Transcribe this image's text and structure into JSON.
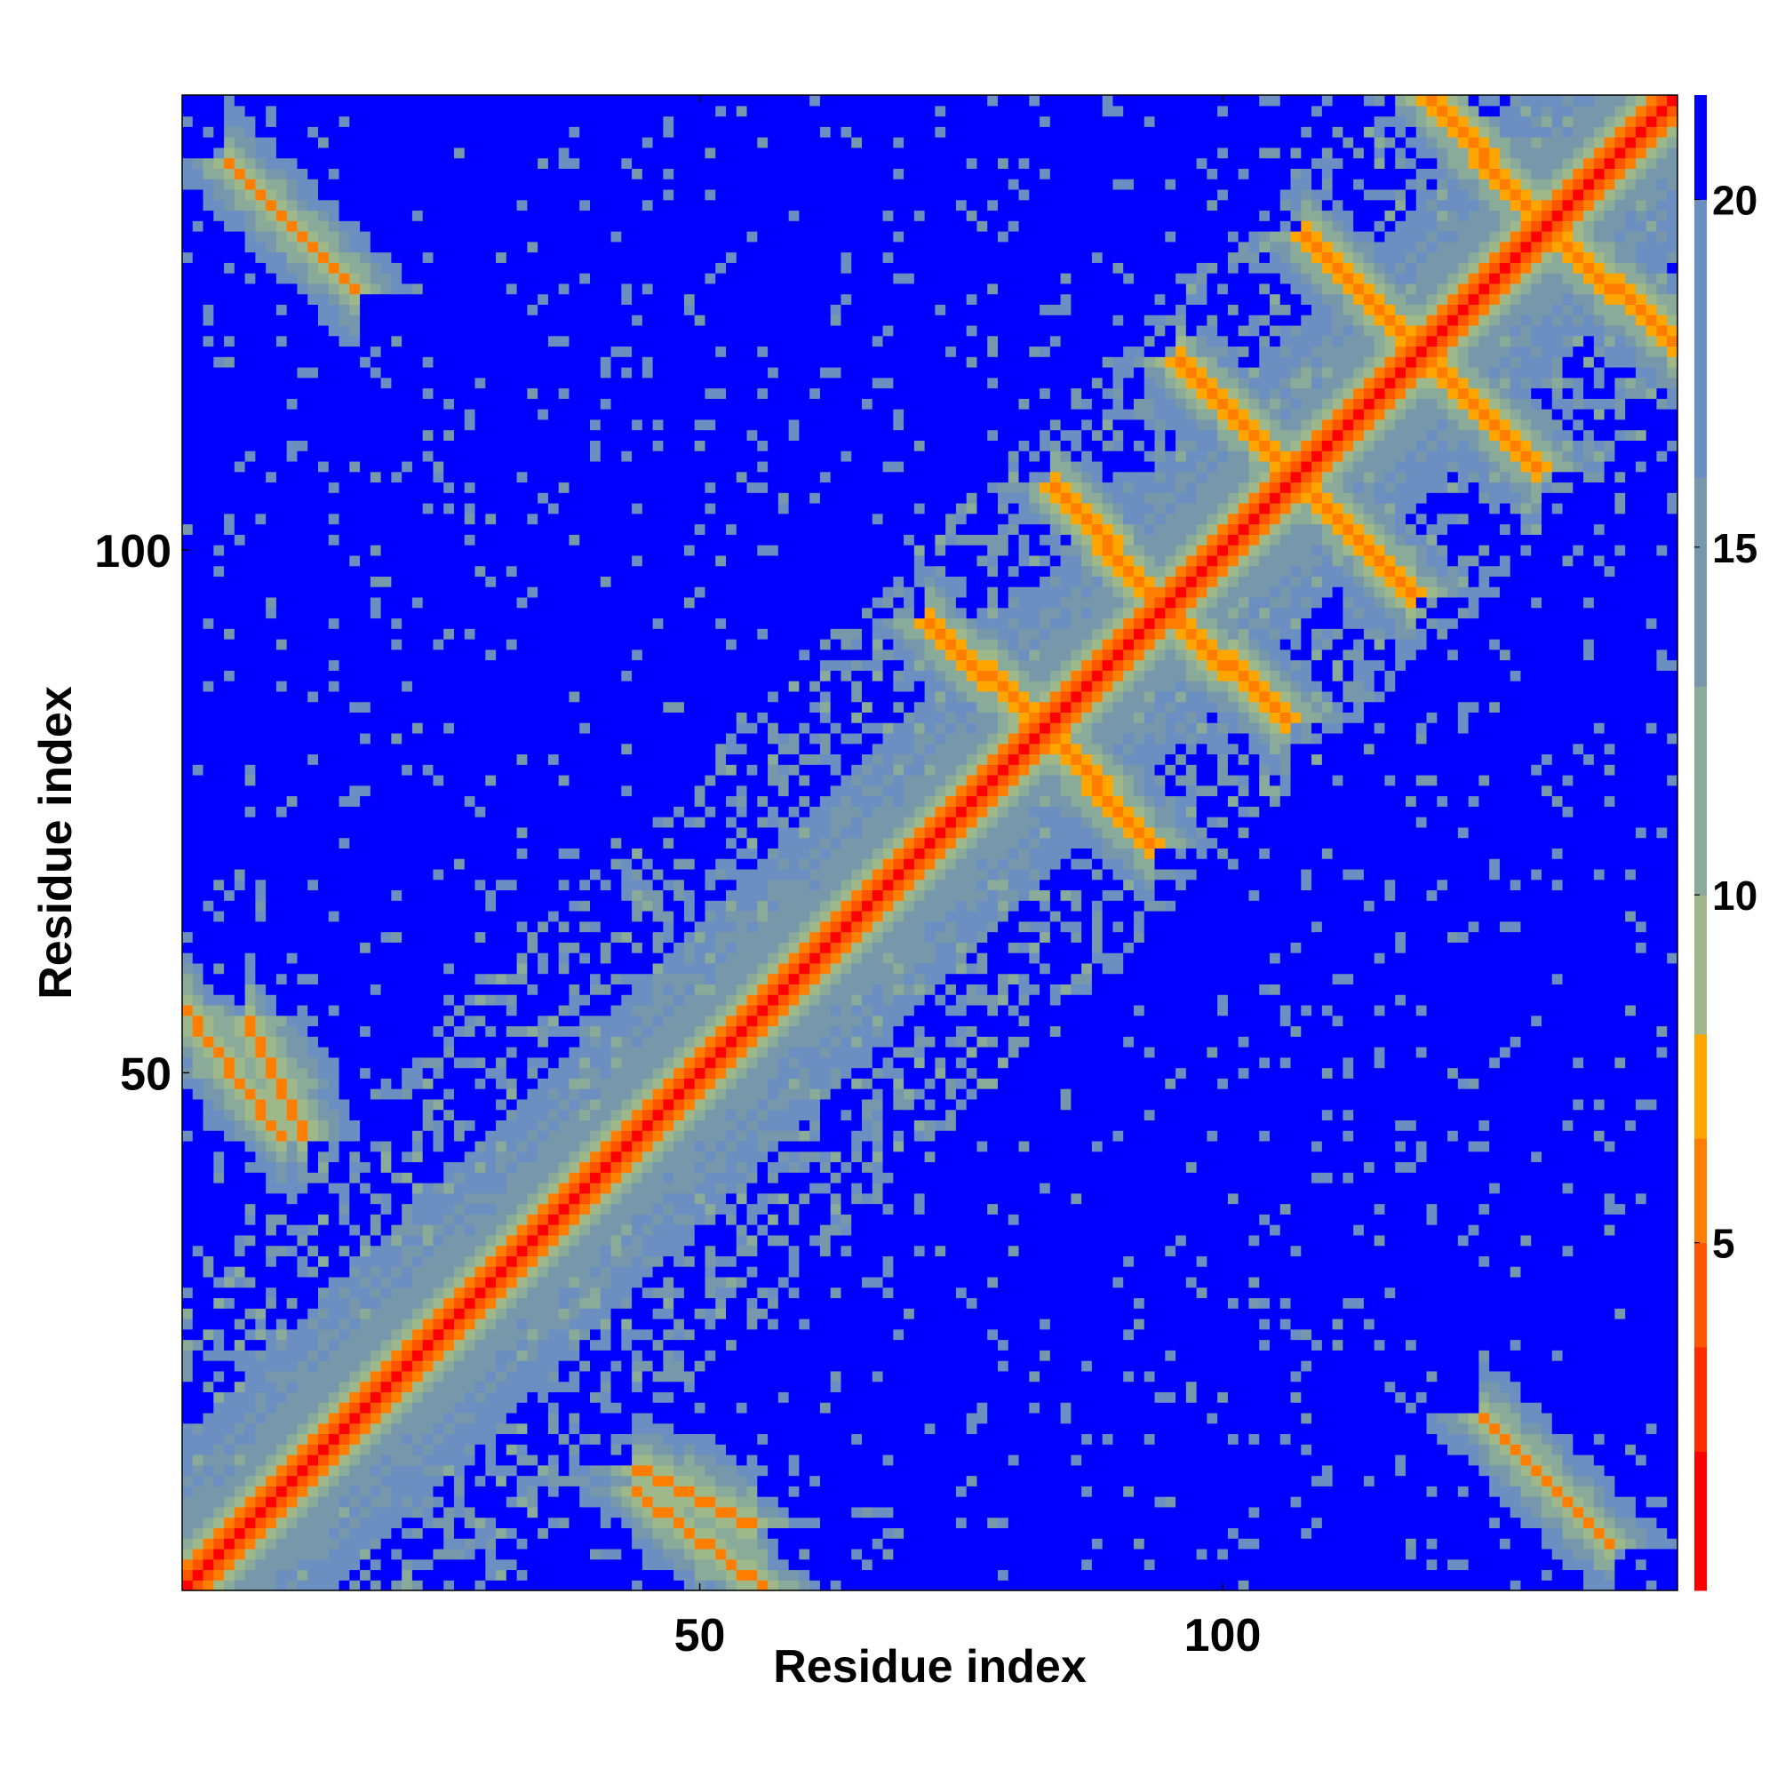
{
  "chart_data": {
    "type": "heatmap",
    "title": "",
    "xlabel": "Residue index",
    "ylabel": "Residue index",
    "n_residues": 143,
    "xlim": [
      1,
      143
    ],
    "ylim": [
      1,
      143
    ],
    "x_ticks": [
      50,
      100
    ],
    "y_ticks": [
      50,
      100
    ],
    "colorbar": {
      "ticks": [
        5,
        10,
        15,
        20
      ],
      "range": [
        0,
        21.5
      ],
      "colors": [
        "#ff0000",
        "#ff2a00",
        "#ff5400",
        "#ff7e00",
        "#ffa500",
        "#9fb88a",
        "#8aaa9a",
        "#7798aa",
        "#6b8fc0",
        "#0000ff"
      ],
      "levels": [
        0,
        2,
        3.5,
        5,
        6.5,
        8,
        10,
        13,
        16,
        20,
        21.5
      ]
    },
    "values_note": "Inter-residue distance map; symmetric about the diagonal.",
    "features": {
      "diagonal": {
        "distance": 0
      },
      "near_diagonal_band": {
        "width": 9
      },
      "antiparallel_contacts": [
        {
          "start": 5,
          "end": 17,
          "partner_start": 125,
          "partner_end": 137,
          "distance": 6
        },
        {
          "start": 7,
          "end": 12,
          "partner_start": 44,
          "partner_end": 55,
          "distance": 6
        },
        {
          "start": 44,
          "end": 56,
          "partner_start": 1,
          "partner_end": 10,
          "distance": 6
        },
        {
          "start": 72,
          "end": 82,
          "partner_start": 84,
          "partner_end": 93,
          "distance": 5
        },
        {
          "start": 84,
          "end": 93,
          "partner_start": 96,
          "partner_end": 106,
          "distance": 5
        },
        {
          "start": 96,
          "end": 106,
          "partner_start": 108,
          "partner_end": 118,
          "distance": 5
        },
        {
          "start": 108,
          "end": 118,
          "partner_start": 120,
          "partner_end": 130,
          "distance": 5
        },
        {
          "start": 120,
          "end": 130,
          "partner_start": 132,
          "partner_end": 143,
          "distance": 5
        }
      ]
    }
  }
}
